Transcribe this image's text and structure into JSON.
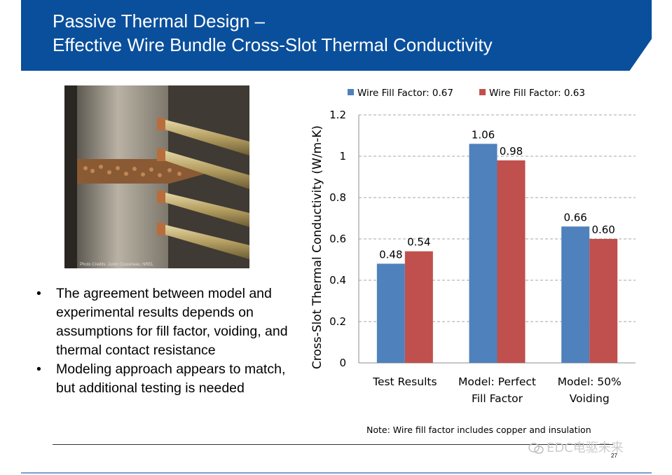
{
  "header": {
    "title_line1": "Passive Thermal Design –",
    "title_line2": "Effective Wire Bundle Cross-Slot Thermal Conductivity"
  },
  "photo": {
    "credit": "Photo Credits: Justin Cousineau, NREL"
  },
  "bullets": [
    "The agreement between model and experimental results depends on assumptions for fill factor, voiding, and thermal contact resistance",
    "Modeling approach appears to match, but additional testing is needed"
  ],
  "chart_data": {
    "type": "bar",
    "categories": [
      [
        "Test Results"
      ],
      [
        "Model: Perfect",
        "Fill Factor"
      ],
      [
        "Model: 50%",
        "Voiding"
      ]
    ],
    "series": [
      {
        "name": "Wire Fill Factor: 0.67",
        "values": [
          0.48,
          1.06,
          0.66
        ],
        "labels": [
          "0.48",
          "1.06",
          "0.66"
        ],
        "color": "#4f81bd"
      },
      {
        "name": "Wire Fill Factor: 0.63",
        "values": [
          0.54,
          0.98,
          0.6
        ],
        "labels": [
          "0.54",
          "0.98",
          "0.60"
        ],
        "color": "#c0504d"
      }
    ],
    "ylabel": "Cross-Slot Thermal Conductivity (W/m-K)",
    "xlabel": "",
    "ylim": [
      0,
      1.2
    ],
    "yticks": [
      0,
      0.2,
      0.4,
      0.6,
      0.8,
      1,
      1.2
    ],
    "ytick_labels": [
      "0",
      "0.2",
      "0.4",
      "0.6",
      "0.8",
      "1",
      "1.2"
    ],
    "grid": true,
    "legend_position": "top"
  },
  "note": "Note: Wire fill factor includes copper and insulation",
  "footer": {
    "watermark": "EDC电驱未来",
    "page_number": "27"
  }
}
